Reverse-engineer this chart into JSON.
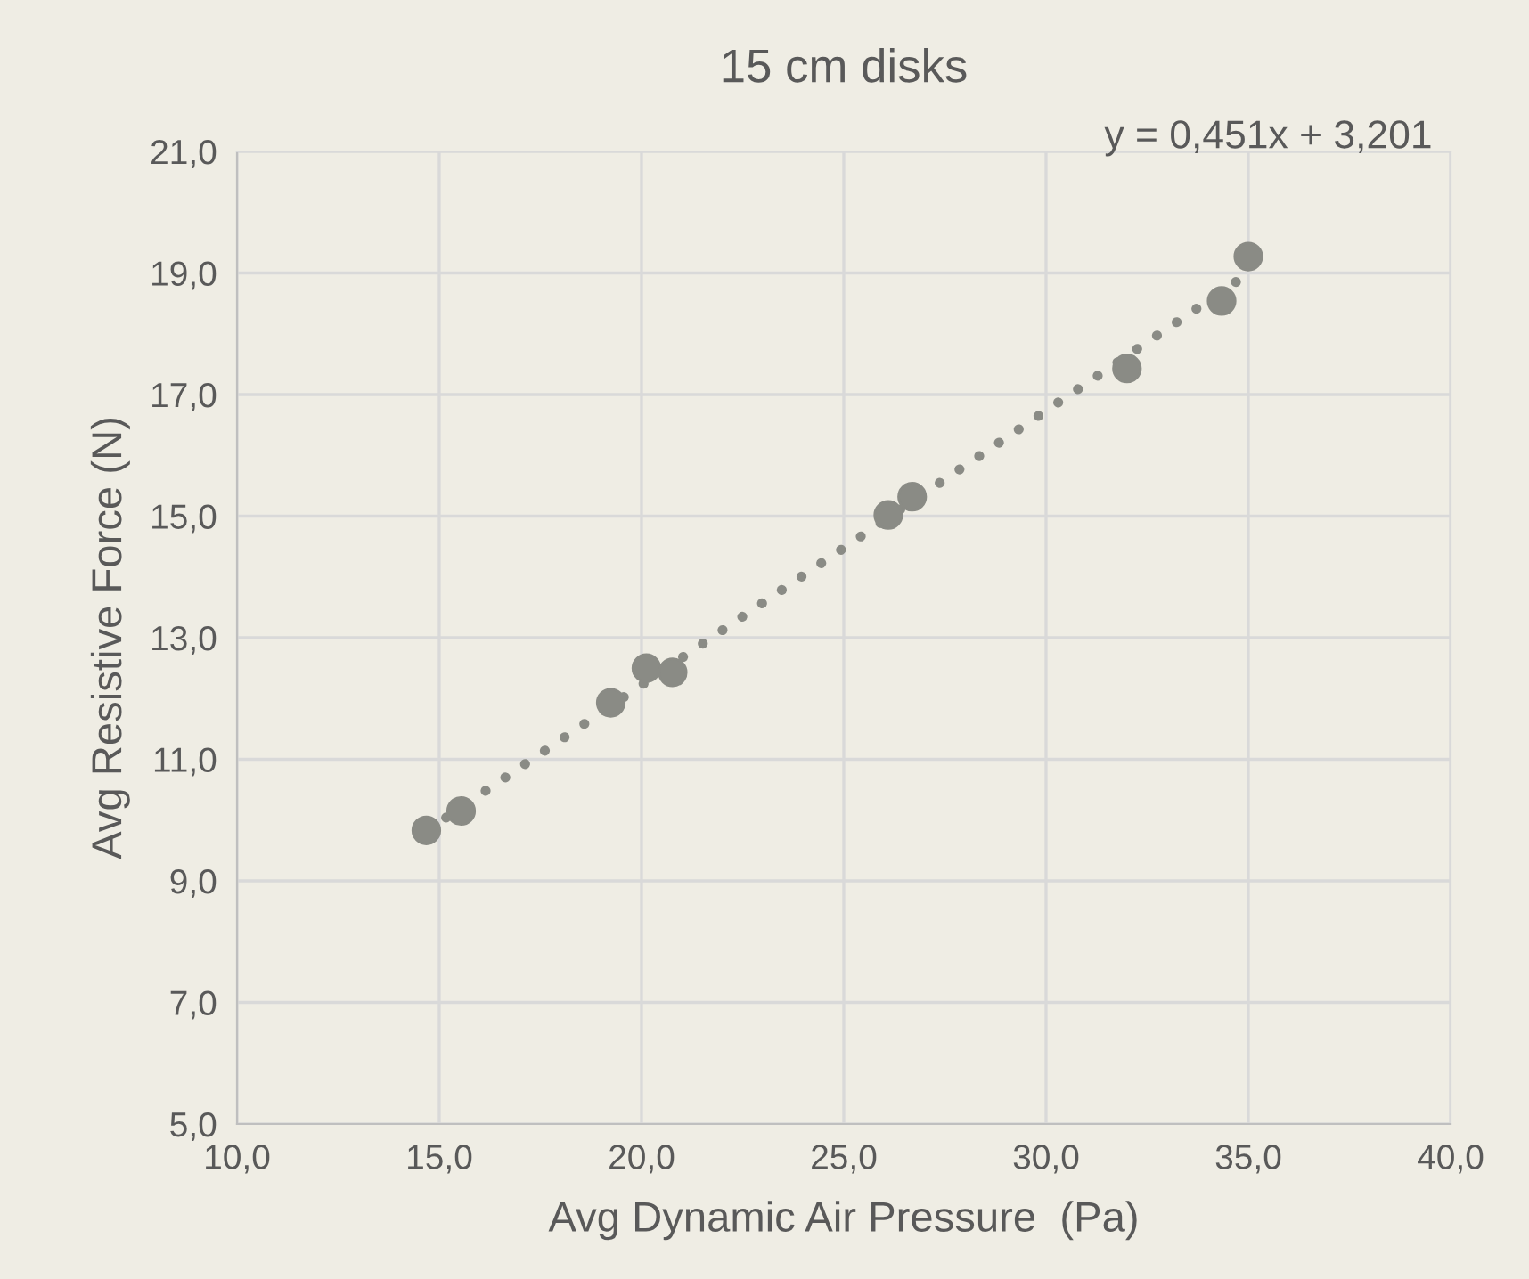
{
  "chart_data": {
    "type": "scatter",
    "title": "15 cm disks",
    "xlabel": "Avg Dynamic Air Pressure  (Pa)",
    "ylabel": "Avg Resistive Force (N)",
    "annotations": [
      "y = 0,451x + 3,201"
    ],
    "series": [
      {
        "color": "#8a8b85",
        "marker": "circle",
        "x": [
          14.68,
          15.54,
          19.24,
          20.12,
          20.77,
          26.1,
          26.69,
          32.0,
          34.34,
          35.0
        ],
        "values": [
          9.83,
          10.15,
          11.93,
          12.5,
          12.43,
          15.02,
          15.32,
          17.43,
          18.54,
          19.27
        ]
      },
      {
        "type": "line",
        "color": "#8a8b85",
        "line_style": "dotted",
        "marker": "none",
        "x": [
          14.68,
          35.0
        ],
        "values": [
          9.82,
          18.99
        ]
      }
    ],
    "xlim": [
      10,
      40
    ],
    "xticks": [
      {
        "value": 10,
        "label": "10,0"
      },
      {
        "value": 15,
        "label": "15,0"
      },
      {
        "value": 20,
        "label": "20,0"
      },
      {
        "value": 25,
        "label": "25,0"
      },
      {
        "value": 30,
        "label": "30,0"
      },
      {
        "value": 35,
        "label": "35,0"
      },
      {
        "value": 40,
        "label": "40,0"
      }
    ],
    "ylim": [
      5,
      21
    ],
    "yticks": [
      {
        "value": 5,
        "label": "5,0"
      },
      {
        "value": 7,
        "label": "7,0"
      },
      {
        "value": 9,
        "label": "9,0"
      },
      {
        "value": 11,
        "label": "11,0"
      },
      {
        "value": 13,
        "label": "13,0"
      },
      {
        "value": 15,
        "label": "15,0"
      },
      {
        "value": 17,
        "label": "17,0"
      },
      {
        "value": 19,
        "label": "19,0"
      },
      {
        "value": 21,
        "label": "21,0"
      }
    ],
    "grid": true,
    "legend": false
  }
}
